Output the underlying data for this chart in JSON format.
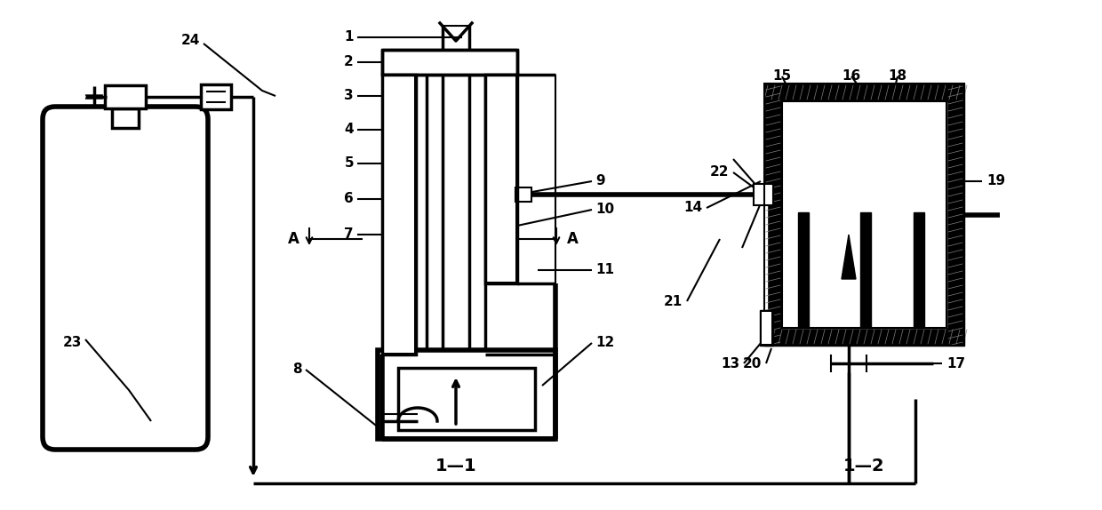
{
  "bg_color": "#ffffff",
  "line_color": "#000000",
  "figsize": [
    12.4,
    5.74
  ],
  "dpi": 100
}
